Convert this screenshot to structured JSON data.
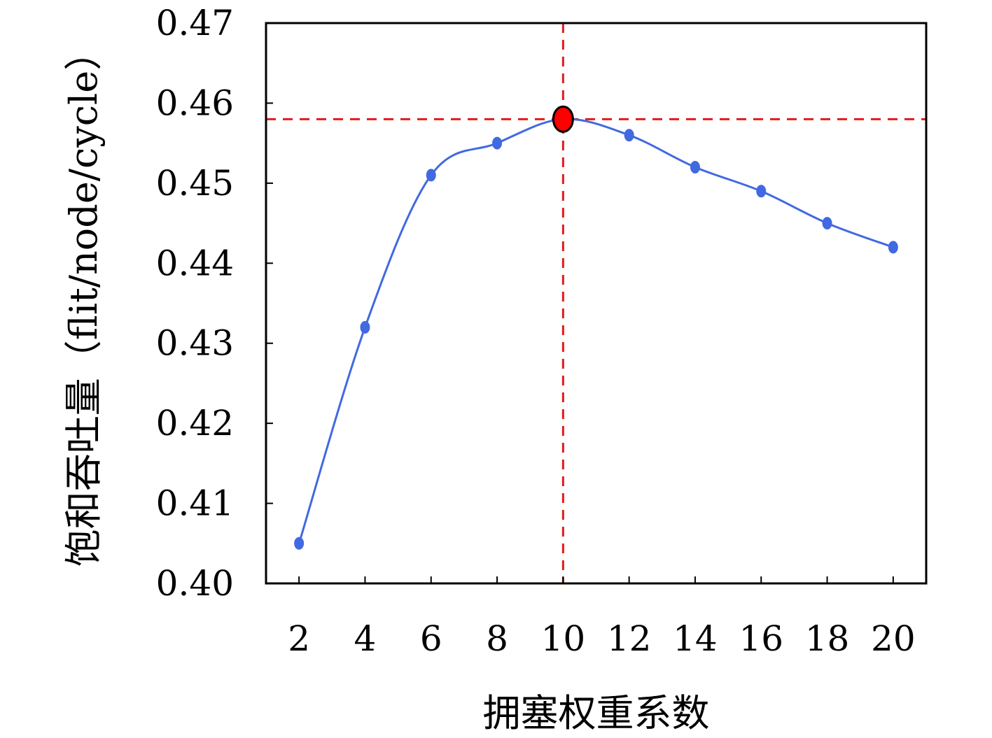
{
  "chart_data": {
    "type": "line",
    "title": "",
    "xlabel": "拥塞权重系数",
    "ylabel": "饱和吞吐量（flit/node/cycle）",
    "x": [
      2,
      4,
      6,
      8,
      10,
      12,
      14,
      16,
      18,
      20
    ],
    "x_tick_labels": [
      "2",
      "4",
      "6",
      "8",
      "10",
      "12",
      "14",
      "16",
      "18",
      "20"
    ],
    "y_tick_values": [
      0.4,
      0.41,
      0.42,
      0.43,
      0.44,
      0.45,
      0.46,
      0.47
    ],
    "y_tick_labels": [
      "0.40",
      "0.41",
      "0.42",
      "0.43",
      "0.44",
      "0.45",
      "0.46",
      "0.47"
    ],
    "ylim": [
      0.4,
      0.47
    ],
    "xlim": [
      1,
      21
    ],
    "series": [
      {
        "values": [
          0.405,
          0.432,
          0.451,
          0.455,
          0.458,
          0.456,
          0.452,
          0.449,
          0.445,
          0.442
        ],
        "color": "#4169E1",
        "smooth": true,
        "marker": "circle"
      }
    ],
    "highlight": {
      "x": 10,
      "y": 0.458,
      "marker_color": "#FF0000",
      "marker_edge": "#000000",
      "guide_line_color": "#E31A1C",
      "guide_line_style": "dashed"
    },
    "grid": false,
    "legend": "none"
  }
}
